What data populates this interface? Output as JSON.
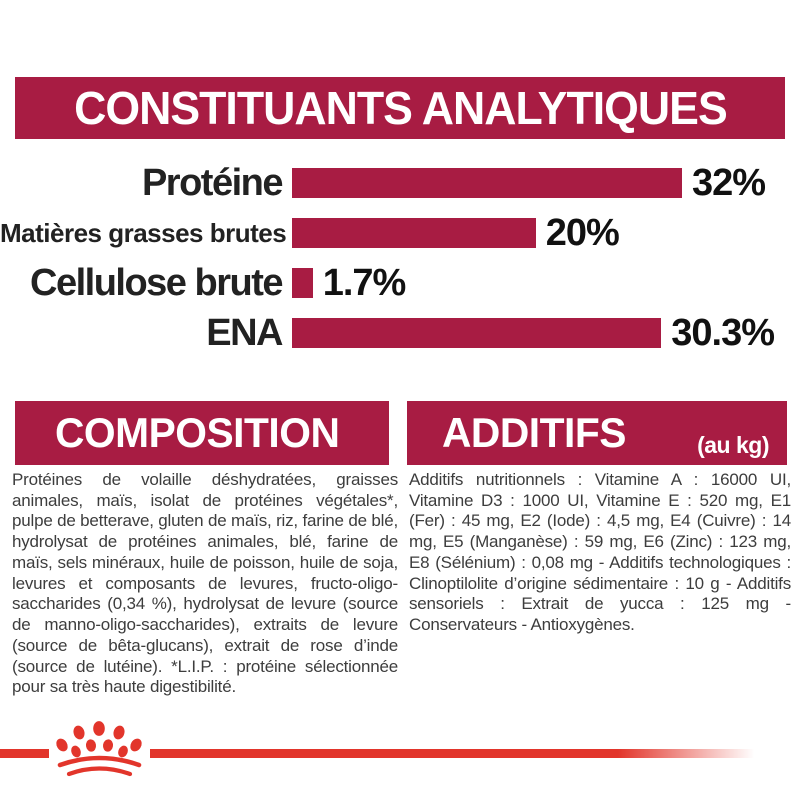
{
  "header": {
    "title": "CONSTITUANTS ANALYTIQUES"
  },
  "chart_data": {
    "type": "bar",
    "orientation": "horizontal",
    "title": "CONSTITUANTS ANALYTIQUES",
    "categories": [
      "Protéine",
      "Matières grasses brutes",
      "Cellulose brute",
      "ENA"
    ],
    "values": [
      32,
      20,
      1.7,
      30.3
    ],
    "value_labels": [
      "32%",
      "20%",
      "1.7%",
      "30.3%"
    ],
    "unit": "%",
    "xlim": [
      0,
      32
    ],
    "grid": false,
    "legend": false,
    "bar_color": "#A81C43"
  },
  "sections": {
    "composition": {
      "title": "COMPOSITION",
      "body": "Protéines de volaille déshydratées, graisses animales, maïs, isolat de protéines végétales*, pulpe de betterave, gluten de maïs, riz, farine de blé, hydrolysat de protéines animales, blé, farine de maïs, sels minéraux, huile de poisson, huile de soja, levures et composants de levures, fructo-oligo-saccharides (0,34 %), hydrolysat de levure (source de manno-oligo-saccharides), extraits de levure (source de bêta-glucans), extrait de rose d’inde (source de lutéine). *L.I.P. : protéine sélectionnée pour sa très haute digestibilité."
    },
    "additifs": {
      "title": "ADDITIFS",
      "unit": "(au kg)",
      "body": "Additifs nutritionnels : Vitamine A : 16000 UI, Vitamine D3 : 1000 UI, Vitamine E : 520 mg, E1 (Fer) : 45 mg, E2 (Iode) : 4,5 mg, E4 (Cuivre) : 14 mg, E5 (Manganèse) : 59 mg, E6 (Zinc) : 123 mg, E8 (Sélénium) : 0,08 mg - Additifs technologiques : Clinoptilolite d’origine sédimentaire : 10 g - Additifs sensoriels : Extrait de yucca : 125 mg - Conservateurs - Antioxygènes."
    }
  },
  "footer": {
    "logo_icon": "royal-canin-crown-logo"
  },
  "colors": {
    "accent_crimson": "#A81C43",
    "brand_red": "#E2352B",
    "body_text": "#3D3D3D",
    "chart_text": "#111111",
    "background": "#FFFFFF"
  }
}
